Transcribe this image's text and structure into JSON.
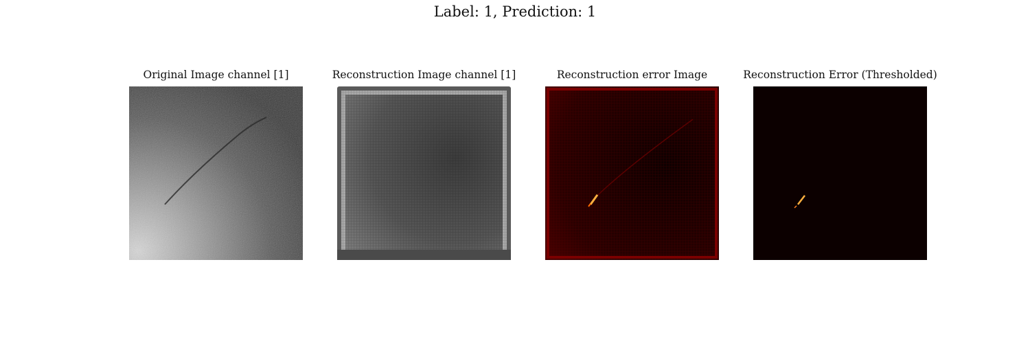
{
  "figure": {
    "suptitle": "Label: 1, Prediction: 1"
  },
  "panels": [
    {
      "title": "Original Image channel [1]",
      "colormap": "gray"
    },
    {
      "title": "Reconstruction Image channel [1]",
      "colormap": "gray"
    },
    {
      "title": "Reconstruction error Image",
      "colormap": "hot"
    },
    {
      "title": "Reconstruction Error (Thresholded)",
      "colormap": "hot"
    }
  ],
  "colors": {
    "error_background": "#1a0000",
    "threshold_background": "#0c0000",
    "highlight": "#ffb040"
  }
}
